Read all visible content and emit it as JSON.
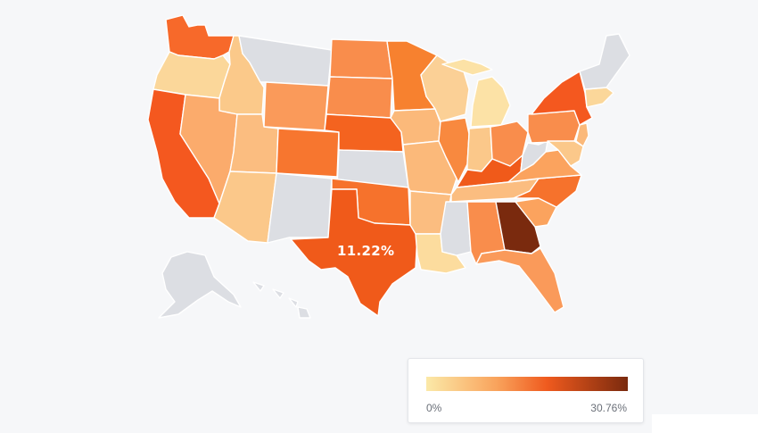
{
  "map": {
    "highlight_label": "11.22%",
    "highlight_state": "Texas",
    "no_data_color": "#dcdee3"
  },
  "legend": {
    "min_label": "0%",
    "max_label": "30.76%",
    "scale": [
      {
        "stop": 0.0,
        "color": "#fbe9a8"
      },
      {
        "stop": 0.35,
        "color": "#f9a35c"
      },
      {
        "stop": 0.6,
        "color": "#ef5a1e"
      },
      {
        "stop": 1.0,
        "color": "#7a2a0e"
      }
    ]
  },
  "states": [
    {
      "name": "Washington",
      "color": "#f7692a"
    },
    {
      "name": "Oregon",
      "color": "#fbd79a"
    },
    {
      "name": "California",
      "color": "#f4581f"
    },
    {
      "name": "Idaho",
      "color": "#fbc98a"
    },
    {
      "name": "Nevada",
      "color": "#fbab6c"
    },
    {
      "name": "Montana",
      "color": "#dcdee3"
    },
    {
      "name": "Wyoming",
      "color": "#fa9a5a"
    },
    {
      "name": "Utah",
      "color": "#fbbd80"
    },
    {
      "name": "Arizona",
      "color": "#fbc88a"
    },
    {
      "name": "Colorado",
      "color": "#f7762f"
    },
    {
      "name": "New Mexico",
      "color": "#dcdee3"
    },
    {
      "name": "North Dakota",
      "color": "#f98d4c"
    },
    {
      "name": "South Dakota",
      "color": "#f98d4c"
    },
    {
      "name": "Nebraska",
      "color": "#f4631f"
    },
    {
      "name": "Kansas",
      "color": "#dcdee3"
    },
    {
      "name": "Oklahoma",
      "color": "#f6722c"
    },
    {
      "name": "Texas",
      "color": "#f05a1a"
    },
    {
      "name": "Minnesota",
      "color": "#f7812f"
    },
    {
      "name": "Iowa",
      "color": "#fbb97a"
    },
    {
      "name": "Missouri",
      "color": "#fbb97a"
    },
    {
      "name": "Arkansas",
      "color": "#fbbd80"
    },
    {
      "name": "Louisiana",
      "color": "#fcdc9e"
    },
    {
      "name": "Wisconsin",
      "color": "#fbd096"
    },
    {
      "name": "Illinois",
      "color": "#f8893f"
    },
    {
      "name": "Michigan",
      "color": "#fce2a6"
    },
    {
      "name": "Indiana",
      "color": "#fbc88a"
    },
    {
      "name": "Ohio",
      "color": "#f98d4c"
    },
    {
      "name": "Kentucky",
      "color": "#f05a1a"
    },
    {
      "name": "Tennessee",
      "color": "#fbbd80"
    },
    {
      "name": "Mississippi",
      "color": "#dcdee3"
    },
    {
      "name": "Alabama",
      "color": "#f98d4c"
    },
    {
      "name": "Georgia",
      "color": "#7a2a0e"
    },
    {
      "name": "Florida",
      "color": "#fa9a5a"
    },
    {
      "name": "South Carolina",
      "color": "#fba35e"
    },
    {
      "name": "North Carolina",
      "color": "#f6722c"
    },
    {
      "name": "Virginia",
      "color": "#fba35e"
    },
    {
      "name": "West Virginia",
      "color": "#dcdee3"
    },
    {
      "name": "Pennsylvania",
      "color": "#f98d4c"
    },
    {
      "name": "New York",
      "color": "#f4581f"
    },
    {
      "name": "New England",
      "color": "#dcdee3"
    },
    {
      "name": "Massachusetts",
      "color": "#fbd79a"
    },
    {
      "name": "New Jersey",
      "color": "#fbb97a"
    },
    {
      "name": "Maryland",
      "color": "#fbc88a"
    },
    {
      "name": "Alaska",
      "color": "#dcdee3"
    },
    {
      "name": "Hawaii",
      "color": "#dcdee3"
    }
  ]
}
